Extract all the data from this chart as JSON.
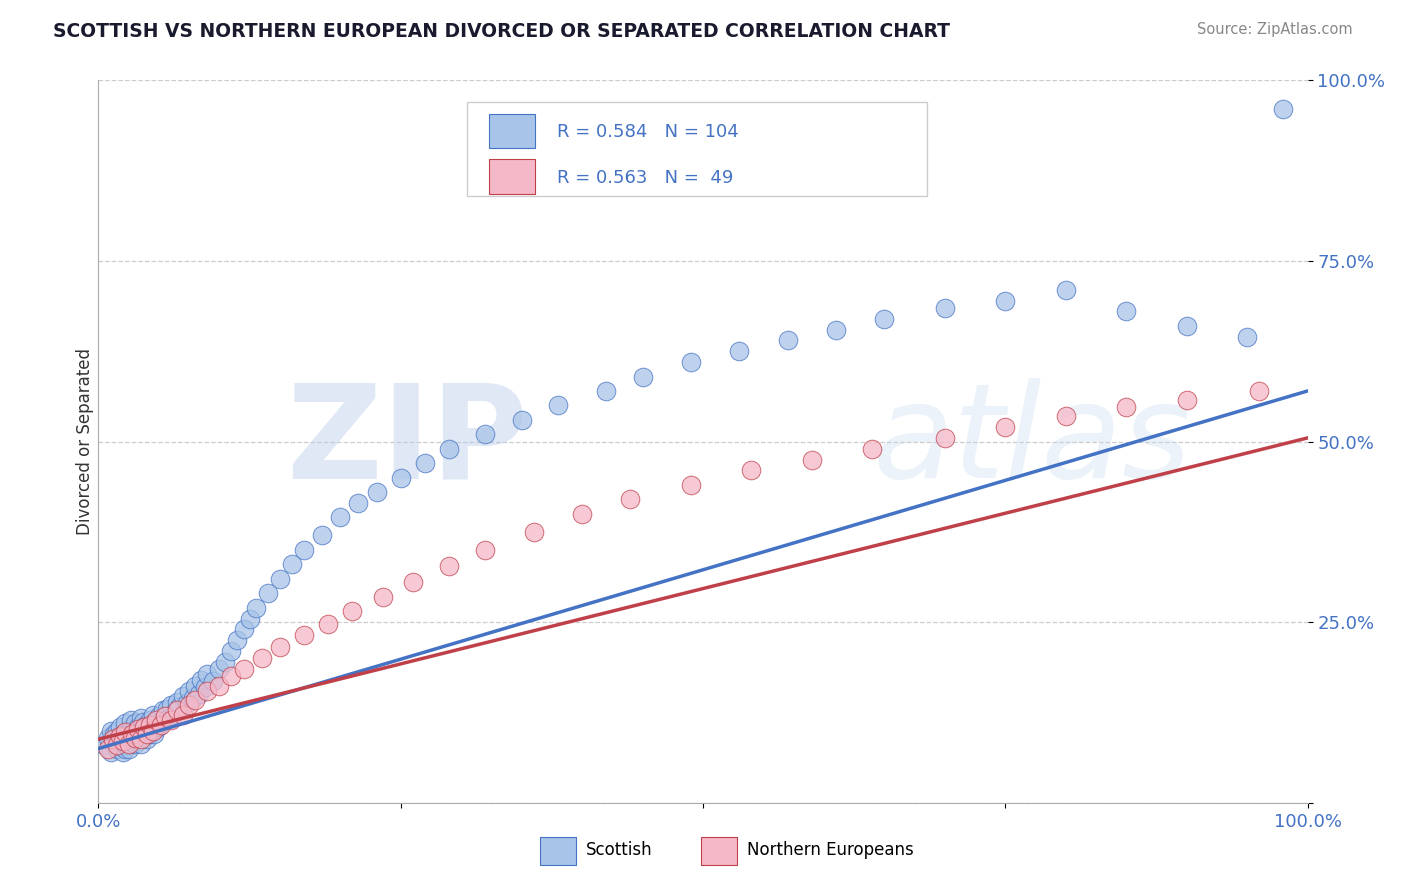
{
  "title": "SCOTTISH VS NORTHERN EUROPEAN DIVORCED OR SEPARATED CORRELATION CHART",
  "source": "Source: ZipAtlas.com",
  "ylabel": "Divorced or Separated",
  "xlim": [
    0,
    1
  ],
  "ylim": [
    0,
    1
  ],
  "xticks": [
    0.0,
    0.25,
    0.5,
    0.75,
    1.0
  ],
  "xticklabels": [
    "0.0%",
    "",
    "",
    "",
    "100.0%"
  ],
  "yticks": [
    0.0,
    0.25,
    0.5,
    0.75,
    1.0
  ],
  "yticklabels": [
    "",
    "25.0%",
    "50.0%",
    "75.0%",
    "100.0%"
  ],
  "scottish_color": "#a8c4e8",
  "northern_color": "#f5b8c8",
  "scottish_line_color": "#4472c4",
  "northern_line_color": "#c0404a",
  "R_scottish": 0.584,
  "N_scottish": 104,
  "R_northern": 0.563,
  "N_northern": 49,
  "watermark_zip": "ZIP",
  "watermark_atlas": "atlas",
  "background_color": "#ffffff",
  "grid_color": "#cccccc",
  "scottish_x": [
    0.005,
    0.008,
    0.01,
    0.01,
    0.012,
    0.013,
    0.015,
    0.015,
    0.015,
    0.017,
    0.018,
    0.018,
    0.019,
    0.02,
    0.02,
    0.021,
    0.022,
    0.022,
    0.023,
    0.023,
    0.024,
    0.025,
    0.025,
    0.026,
    0.027,
    0.027,
    0.028,
    0.029,
    0.03,
    0.03,
    0.031,
    0.032,
    0.033,
    0.034,
    0.035,
    0.035,
    0.036,
    0.037,
    0.038,
    0.039,
    0.04,
    0.041,
    0.042,
    0.043,
    0.044,
    0.045,
    0.046,
    0.048,
    0.049,
    0.05,
    0.052,
    0.053,
    0.055,
    0.057,
    0.058,
    0.06,
    0.063,
    0.065,
    0.067,
    0.07,
    0.073,
    0.075,
    0.078,
    0.08,
    0.083,
    0.085,
    0.088,
    0.09,
    0.095,
    0.1,
    0.105,
    0.11,
    0.115,
    0.12,
    0.125,
    0.13,
    0.14,
    0.15,
    0.16,
    0.17,
    0.185,
    0.2,
    0.215,
    0.23,
    0.25,
    0.27,
    0.29,
    0.32,
    0.35,
    0.38,
    0.42,
    0.45,
    0.49,
    0.53,
    0.57,
    0.61,
    0.65,
    0.7,
    0.75,
    0.8,
    0.85,
    0.9,
    0.95,
    0.98
  ],
  "scottish_y": [
    0.08,
    0.09,
    0.07,
    0.1,
    0.085,
    0.095,
    0.075,
    0.088,
    0.1,
    0.092,
    0.078,
    0.105,
    0.082,
    0.07,
    0.095,
    0.088,
    0.075,
    0.11,
    0.08,
    0.095,
    0.088,
    0.075,
    0.1,
    0.085,
    0.095,
    0.115,
    0.088,
    0.1,
    0.082,
    0.11,
    0.095,
    0.088,
    0.105,
    0.092,
    0.118,
    0.082,
    0.1,
    0.112,
    0.095,
    0.108,
    0.088,
    0.105,
    0.095,
    0.115,
    0.102,
    0.122,
    0.095,
    0.112,
    0.105,
    0.12,
    0.11,
    0.128,
    0.115,
    0.13,
    0.118,
    0.135,
    0.125,
    0.14,
    0.132,
    0.148,
    0.138,
    0.155,
    0.145,
    0.162,
    0.15,
    0.17,
    0.16,
    0.178,
    0.168,
    0.185,
    0.195,
    0.21,
    0.225,
    0.24,
    0.255,
    0.27,
    0.29,
    0.31,
    0.33,
    0.35,
    0.37,
    0.395,
    0.415,
    0.43,
    0.45,
    0.47,
    0.49,
    0.51,
    0.53,
    0.55,
    0.57,
    0.59,
    0.61,
    0.625,
    0.64,
    0.655,
    0.67,
    0.685,
    0.695,
    0.71,
    0.68,
    0.66,
    0.645,
    0.96
  ],
  "northern_x": [
    0.008,
    0.012,
    0.015,
    0.018,
    0.02,
    0.022,
    0.025,
    0.028,
    0.03,
    0.033,
    0.035,
    0.038,
    0.04,
    0.043,
    0.045,
    0.048,
    0.052,
    0.055,
    0.06,
    0.065,
    0.07,
    0.075,
    0.08,
    0.09,
    0.1,
    0.11,
    0.12,
    0.135,
    0.15,
    0.17,
    0.19,
    0.21,
    0.235,
    0.26,
    0.29,
    0.32,
    0.36,
    0.4,
    0.44,
    0.49,
    0.54,
    0.59,
    0.64,
    0.7,
    0.75,
    0.8,
    0.85,
    0.9,
    0.96
  ],
  "northern_y": [
    0.075,
    0.088,
    0.08,
    0.092,
    0.085,
    0.098,
    0.082,
    0.095,
    0.09,
    0.102,
    0.088,
    0.105,
    0.095,
    0.108,
    0.1,
    0.115,
    0.108,
    0.12,
    0.115,
    0.128,
    0.122,
    0.135,
    0.142,
    0.155,
    0.162,
    0.175,
    0.185,
    0.2,
    0.215,
    0.232,
    0.248,
    0.265,
    0.285,
    0.305,
    0.328,
    0.35,
    0.375,
    0.4,
    0.42,
    0.44,
    0.46,
    0.475,
    0.49,
    0.505,
    0.52,
    0.535,
    0.548,
    0.558,
    0.57
  ],
  "scottish_line_x": [
    0.0,
    1.0
  ],
  "scottish_line_y": [
    0.075,
    0.57
  ],
  "northern_line_x": [
    0.0,
    1.0
  ],
  "northern_line_y": [
    0.088,
    0.505
  ]
}
